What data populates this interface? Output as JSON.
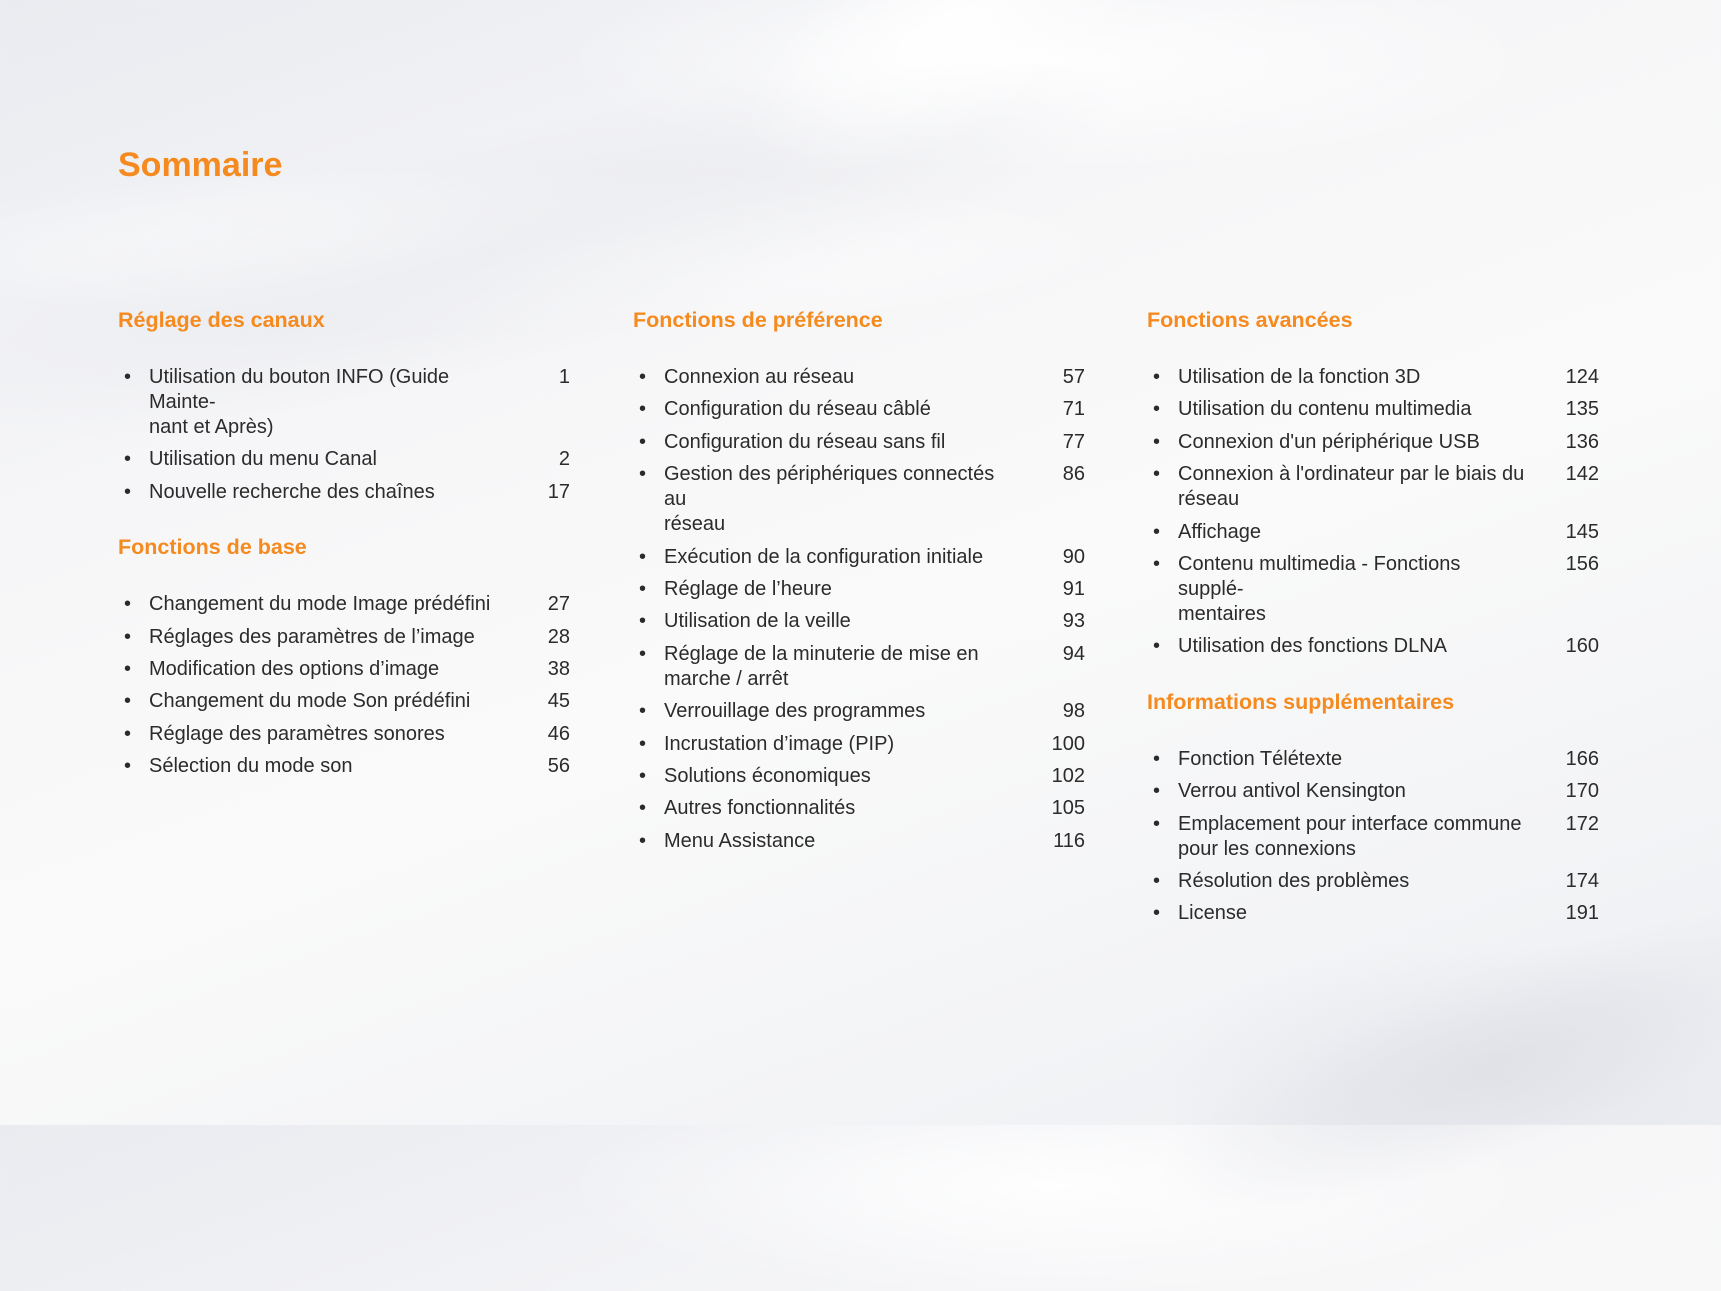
{
  "title": "Sommaire",
  "accent_color": "#f58a1f",
  "columns": [
    {
      "sections": [
        {
          "heading": "Réglage des canaux",
          "items": [
            {
              "text": "Utilisation du bouton INFO (Guide Mainte-\nnant et Après)",
              "page": "1"
            },
            {
              "text": "Utilisation du menu Canal",
              "page": "2"
            },
            {
              "text": "Nouvelle recherche des chaînes",
              "page": "17"
            }
          ]
        },
        {
          "heading": "Fonctions de base",
          "items": [
            {
              "text": "Changement du mode Image prédéfini",
              "page": "27"
            },
            {
              "text": "Réglages des paramètres de l’image",
              "page": "28"
            },
            {
              "text": "Modification des options d’image",
              "page": "38"
            },
            {
              "text": "Changement du mode Son prédéfini",
              "page": "45"
            },
            {
              "text": "Réglage des paramètres sonores",
              "page": "46"
            },
            {
              "text": "Sélection du mode son",
              "page": "56"
            }
          ]
        }
      ]
    },
    {
      "sections": [
        {
          "heading": "Fonctions de préférence",
          "items": [
            {
              "text": "Connexion au réseau",
              "page": "57"
            },
            {
              "text": "Configuration du réseau câblé",
              "page": "71"
            },
            {
              "text": "Configuration du réseau sans fil",
              "page": "77"
            },
            {
              "text": "Gestion des périphériques connectés au\nréseau",
              "page": "86"
            },
            {
              "text": "Exécution de la configuration initiale",
              "page": "90"
            },
            {
              "text": "Réglage de l’heure",
              "page": "91"
            },
            {
              "text": "Utilisation de la veille",
              "page": "93"
            },
            {
              "text": "Réglage de la minuterie de mise en\nmarche / arrêt",
              "page": "94"
            },
            {
              "text": "Verrouillage des programmes",
              "page": "98"
            },
            {
              "text": "Incrustation d’image (PIP)",
              "page": "100"
            },
            {
              "text": "Solutions économiques",
              "page": "102"
            },
            {
              "text": "Autres fonctionnalités",
              "page": "105"
            },
            {
              "text": "Menu Assistance",
              "page": "116"
            }
          ]
        }
      ]
    },
    {
      "sections": [
        {
          "heading": "Fonctions avancées",
          "items": [
            {
              "text": "Utilisation de la fonction 3D",
              "page": "124"
            },
            {
              "text": "Utilisation du contenu multimedia",
              "page": "135"
            },
            {
              "text": "Connexion d'un périphérique USB",
              "page": "136"
            },
            {
              "text": "Connexion à l'ordinateur par le biais du\nréseau",
              "page": "142"
            },
            {
              "text": "Affichage",
              "page": "145"
            },
            {
              "text": "Contenu multimedia - Fonctions supplé-\nmentaires",
              "page": "156"
            },
            {
              "text": "Utilisation des fonctions DLNA",
              "page": "160"
            }
          ]
        },
        {
          "heading": "Informations supplémentaires",
          "items": [
            {
              "text": "Fonction Télétexte",
              "page": "166"
            },
            {
              "text": "Verrou antivol Kensington",
              "page": "170"
            },
            {
              "text": "Emplacement pour interface commune\npour les connexions",
              "page": "172"
            },
            {
              "text": "Résolution des problèmes",
              "page": "174"
            },
            {
              "text": "License",
              "page": "191"
            }
          ]
        }
      ]
    }
  ]
}
